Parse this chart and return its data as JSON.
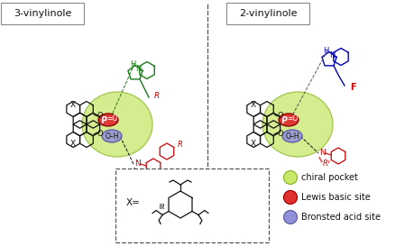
{
  "title_left": "3-vinylinole",
  "title_right": "2-vinylinole",
  "legend_items": [
    {
      "label": "chiral pocket",
      "color": "#c8e86a",
      "edge": "#8db82e"
    },
    {
      "label": "Lewis basic site",
      "color": "#e03030",
      "edge": "#aa0000"
    },
    {
      "label": "Bronsted acid site",
      "color": "#9090d8",
      "edge": "#6060aa"
    }
  ],
  "x_label": "X=",
  "bg_color": "#ffffff",
  "box_border_color": "#555555",
  "divider_color": "#555555",
  "left_vinyl_color": "#1a7a1a",
  "right_vinyl_color": "#0000bb",
  "red_sub_color": "#cc0000",
  "black_color": "#111111",
  "chiral_pocket_color": "#c8e86a",
  "chiral_pocket_alpha": 0.75,
  "lewis_color": "#e03030",
  "lewis_edge": "#880000",
  "bronsted_color": "#9090d8",
  "bronsted_edge": "#5050aa",
  "title_fontsize": 8,
  "label_fontsize": 6.5,
  "small_fontsize": 5.5
}
